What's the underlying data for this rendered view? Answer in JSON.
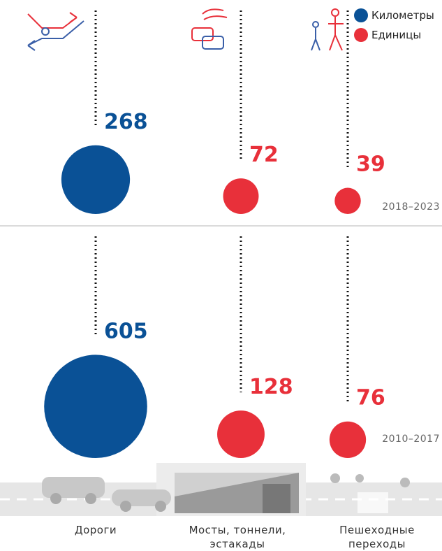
{
  "chart_data": {
    "type": "bubble",
    "categories": [
      "Дороги",
      "Мосты, тоннели, эстакады",
      "Пешеходные переходы"
    ],
    "colors": [
      "#0a5196",
      "#e8303a",
      "#e8303a"
    ],
    "legend": [
      {
        "name": "Километры",
        "color": "#0a5196"
      },
      {
        "name": "Единицы",
        "color": "#e8303a"
      }
    ],
    "periods": [
      {
        "name": "2018–2023",
        "values": [
          268,
          72,
          39
        ]
      },
      {
        "name": "2010–2017",
        "values": [
          605,
          128,
          76
        ]
      }
    ]
  }
}
